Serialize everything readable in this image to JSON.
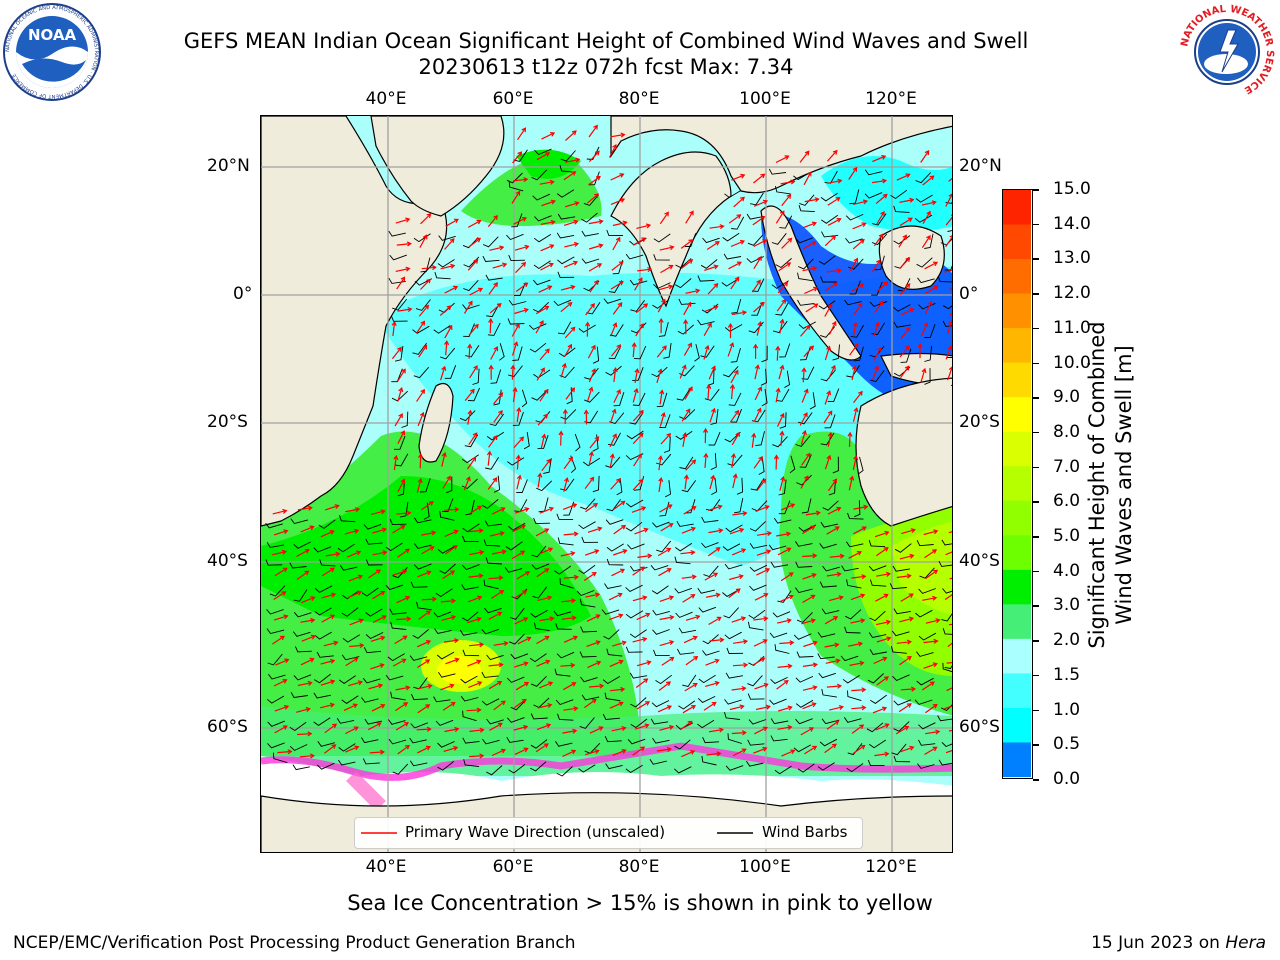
{
  "header": {
    "title_line1": "GEFS MEAN Indian Ocean Significant Height of Combined Wind Waves and Swell",
    "title_line2": "20230613 t12z 072h fcst   Max: 7.34"
  },
  "logos": {
    "left": {
      "name": "noaa-logo",
      "text": "NOAA",
      "ring_text": "NATIONAL OCEANIC AND ATMOSPHERIC ADMINISTRATION · U.S. DEPARTMENT OF COMMERCE"
    },
    "right": {
      "name": "nws-logo",
      "ring_text": "NATIONAL WEATHER SERVICE"
    }
  },
  "map": {
    "lon_labels": [
      "40°E",
      "60°E",
      "80°E",
      "100°E",
      "120°E"
    ],
    "lat_labels_left": [
      "20°N",
      "0°",
      "20°S",
      "40°S",
      "60°S"
    ],
    "lat_labels_right": [
      "20°N",
      "0°",
      "20°S",
      "40°S",
      "60°S"
    ],
    "colors": {
      "land": "#efecdc",
      "ocean_low": "#aafffa",
      "green": "#44ee44",
      "cyan": "#22ffff",
      "blue": "#0044ff",
      "arrow": "#ff0000",
      "barb": "#000000"
    },
    "legend": {
      "wave_label": "Primary Wave Direction (unscaled)",
      "barb_label": "Wind Barbs"
    }
  },
  "colorbar": {
    "label_line1": "Significant Height of Combined",
    "label_line2": "Wind Waves and Swell [m]",
    "ticks": [
      "15.0",
      "14.0",
      "13.0",
      "12.0",
      "11.0",
      "10.0",
      "9.0",
      "8.0",
      "7.0",
      "6.0",
      "5.0",
      "4.0",
      "3.0",
      "2.0",
      "1.5",
      "1.0",
      "0.5",
      "0.0"
    ],
    "colors": [
      "#ff0000",
      "#ff2400",
      "#ff4800",
      "#ff6d00",
      "#ff9100",
      "#ffb600",
      "#ffda00",
      "#ffff00",
      "#daff00",
      "#b6ff00",
      "#91ff00",
      "#6dff00",
      "#00ee00",
      "#44ee77",
      "#aaffff",
      "#44ffff",
      "#00ffff",
      "#007fff",
      "#0000ff"
    ]
  },
  "subtitle": "Sea Ice Concentration > 15% is shown in pink to yellow",
  "footer": {
    "left": "NCEP/EMC/Verification Post Processing Product Generation Branch",
    "right_date": "15 Jun 2023 on ",
    "right_host": "Hera"
  }
}
